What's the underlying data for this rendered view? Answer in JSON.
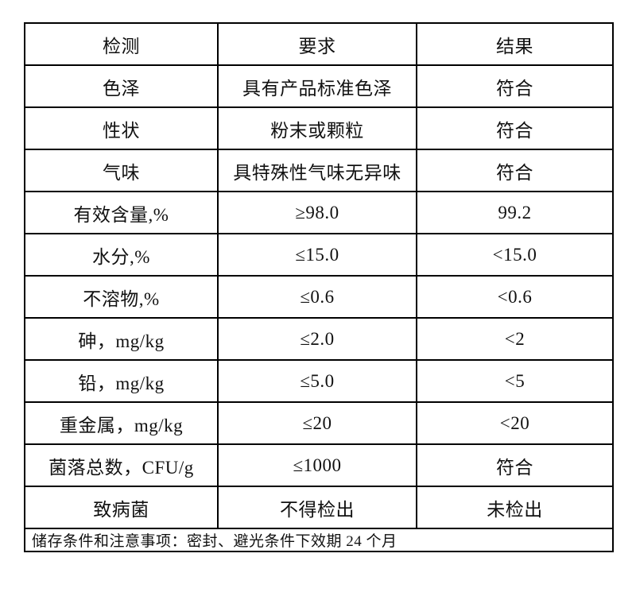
{
  "colors": {
    "background": "#ffffff",
    "border": "#000000",
    "text": "#111111"
  },
  "table": {
    "columns": [
      "检测",
      "要求",
      "结果"
    ],
    "rows": [
      {
        "item": "色泽",
        "requirement": "具有产品标准色泽",
        "result": "符合"
      },
      {
        "item": "性状",
        "requirement": "粉末或颗粒",
        "result": "符合"
      },
      {
        "item": "气味",
        "requirement": "具特殊性气味无异味",
        "result": "符合"
      },
      {
        "item": "有效含量,%",
        "requirement": "≥98.0",
        "result": "99.2"
      },
      {
        "item": "水分,%",
        "requirement": "≤15.0",
        "result": "<15.0"
      },
      {
        "item": "不溶物,%",
        "requirement": "≤0.6",
        "result": "<0.6"
      },
      {
        "item": "砷，mg/kg",
        "requirement": "≤2.0",
        "result": "<2"
      },
      {
        "item": "铅，mg/kg",
        "requirement": "≤5.0",
        "result": "<5"
      },
      {
        "item": "重金属，mg/kg",
        "requirement": "≤20",
        "result": "<20"
      },
      {
        "item": "菌落总数，CFU/g",
        "requirement": "≤1000",
        "result": "符合"
      },
      {
        "item": "致病菌",
        "requirement": "不得检出",
        "result": "未检出"
      }
    ],
    "footer_note": "储存条件和注意事项：密封、避光条件下效期 24 个月"
  }
}
